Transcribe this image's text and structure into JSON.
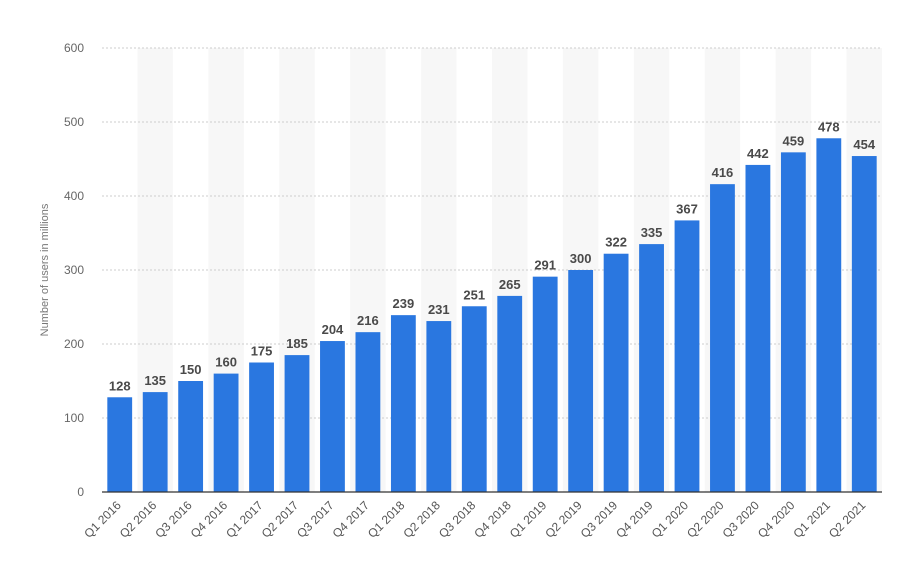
{
  "chart_data": {
    "type": "bar",
    "title": "",
    "xlabel": "",
    "ylabel": "Number of users in millions",
    "categories": [
      "Q1 2016",
      "Q2 2016",
      "Q3 2016",
      "Q4 2016",
      "Q1 2017",
      "Q2 2017",
      "Q3 2017",
      "Q4 2017",
      "Q1 2018",
      "Q2 2018",
      "Q3 2018",
      "Q4 2018",
      "Q1 2019",
      "Q2 2019",
      "Q3 2019",
      "Q4 2019",
      "Q1 2020",
      "Q2 2020",
      "Q3 2020",
      "Q4 2020",
      "Q1 2021",
      "Q2 2021"
    ],
    "values": [
      128,
      135,
      150,
      160,
      175,
      185,
      204,
      216,
      239,
      231,
      251,
      265,
      291,
      300,
      322,
      335,
      367,
      416,
      442,
      459,
      478,
      454
    ],
    "ylim": [
      0,
      600
    ],
    "yticks": [
      0,
      100,
      200,
      300,
      400,
      500,
      600
    ],
    "grid": true,
    "legend": "none",
    "bar_color": "#2a77e0",
    "band_color": "#f7f7f7",
    "grid_color": "#cccccc"
  }
}
